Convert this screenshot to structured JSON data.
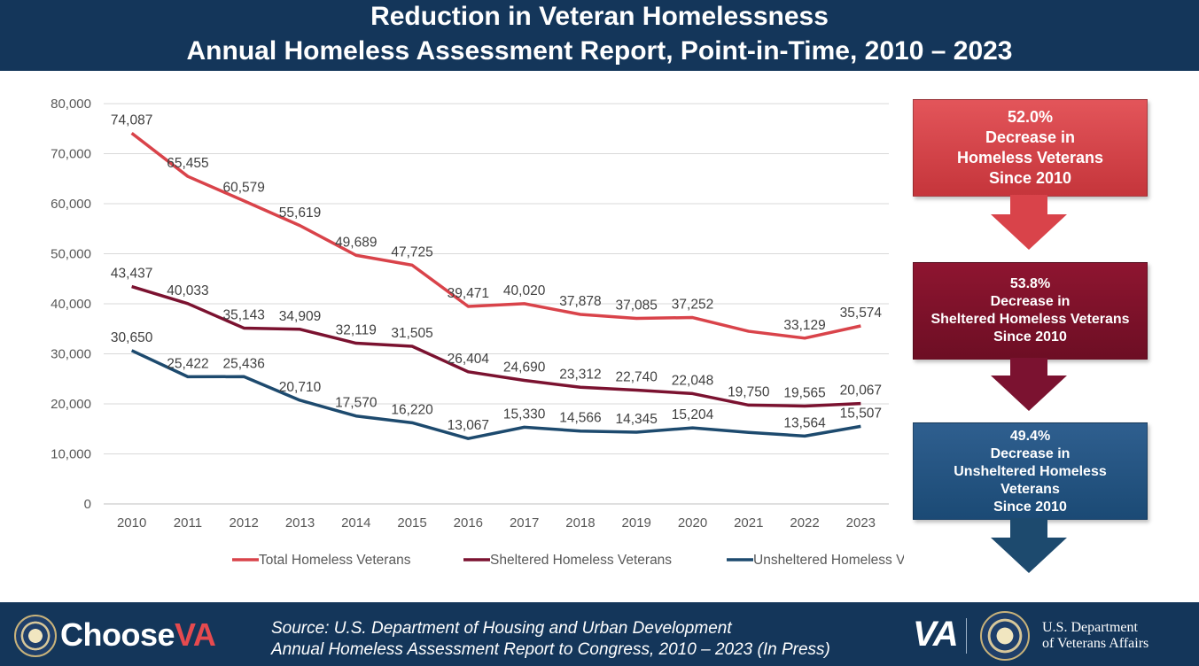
{
  "header": {
    "title": "Reduction in Veteran Homelessness",
    "subtitle": "Annual Homeless Assessment Report, Point-in-Time, 2010 – 2023"
  },
  "chart_data": {
    "type": "line",
    "title": "Reduction in Veteran Homelessness",
    "xlabel": "",
    "ylabel": "",
    "x": [
      "2010",
      "2011",
      "2012",
      "2013",
      "2014",
      "2015",
      "2016",
      "2017",
      "2018",
      "2019",
      "2020",
      "2021",
      "2022",
      "2023"
    ],
    "ylim": [
      0,
      80000
    ],
    "yticks": [
      0,
      10000,
      20000,
      30000,
      40000,
      50000,
      60000,
      70000,
      80000
    ],
    "ytick_labels": [
      "0",
      "10,000",
      "20,000",
      "30,000",
      "40,000",
      "50,000",
      "60,000",
      "70,000",
      "80,000"
    ],
    "grid": true,
    "legend_position": "bottom",
    "series": [
      {
        "name": "Total Homeless Veterans",
        "color": "#d9434a",
        "values": [
          74087,
          65455,
          60579,
          55619,
          49689,
          47725,
          39471,
          40020,
          37878,
          37085,
          37252,
          null,
          33129,
          35574
        ],
        "interpolated": {
          "2021": 34500
        },
        "labels": [
          "74,087",
          "65,455",
          "60,579",
          "55,619",
          "49,689",
          "47,725",
          "39,471",
          "40,020",
          "37,878",
          "37,085",
          "37,252",
          "",
          "33,129",
          "35,574"
        ]
      },
      {
        "name": "Sheltered Homeless Veterans",
        "color": "#7b1230",
        "values": [
          43437,
          40033,
          35143,
          34909,
          32119,
          31505,
          26404,
          24690,
          23312,
          22740,
          22048,
          19750,
          19565,
          20067
        ],
        "labels": [
          "43,437",
          "40,033",
          "35,143",
          "34,909",
          "32,119",
          "31,505",
          "26,404",
          "24,690",
          "23,312",
          "22,740",
          "22,048",
          "19,750",
          "19,565",
          "20,067"
        ]
      },
      {
        "name": "Unsheltered Homeless Veterans",
        "color": "#1d4a6e",
        "values": [
          30650,
          25422,
          25436,
          20710,
          17570,
          16220,
          13067,
          15330,
          14566,
          14345,
          15204,
          14300,
          13564,
          15507
        ],
        "labels": [
          "30,650",
          "25,422",
          "25,436",
          "20,710",
          "17,570",
          "16,220",
          "13,067",
          "15,330",
          "14,566",
          "14,345",
          "15,204",
          "",
          "13,564",
          "15,507"
        ]
      }
    ]
  },
  "callouts": [
    {
      "pct": "52.0%",
      "line1": "Decrease in",
      "line2": "Homeless Veterans",
      "line3": "",
      "since": "Since 2010",
      "color": "#d9434a"
    },
    {
      "pct": "53.8%",
      "line1": "Decrease in",
      "line2": "Sheltered Homeless Veterans",
      "line3": "",
      "since": "Since 2010",
      "color": "#7b1230"
    },
    {
      "pct": "49.4%",
      "line1": "Decrease in",
      "line2": "Unsheltered Homeless",
      "line3": "Veterans",
      "since": "Since 2010",
      "color": "#1d4a6e"
    }
  ],
  "footer": {
    "brand_prefix": "Choose",
    "brand_suffix": "VA",
    "source_line1": "Source: U.S. Department of Housing and Urban Development",
    "source_line2": "Annual Homeless Assessment Report to Congress, 2010 – 2023 (In Press)",
    "va_mark": "VA",
    "dept_line1": "U.S. Department",
    "dept_line2": "of Veterans Affairs"
  }
}
